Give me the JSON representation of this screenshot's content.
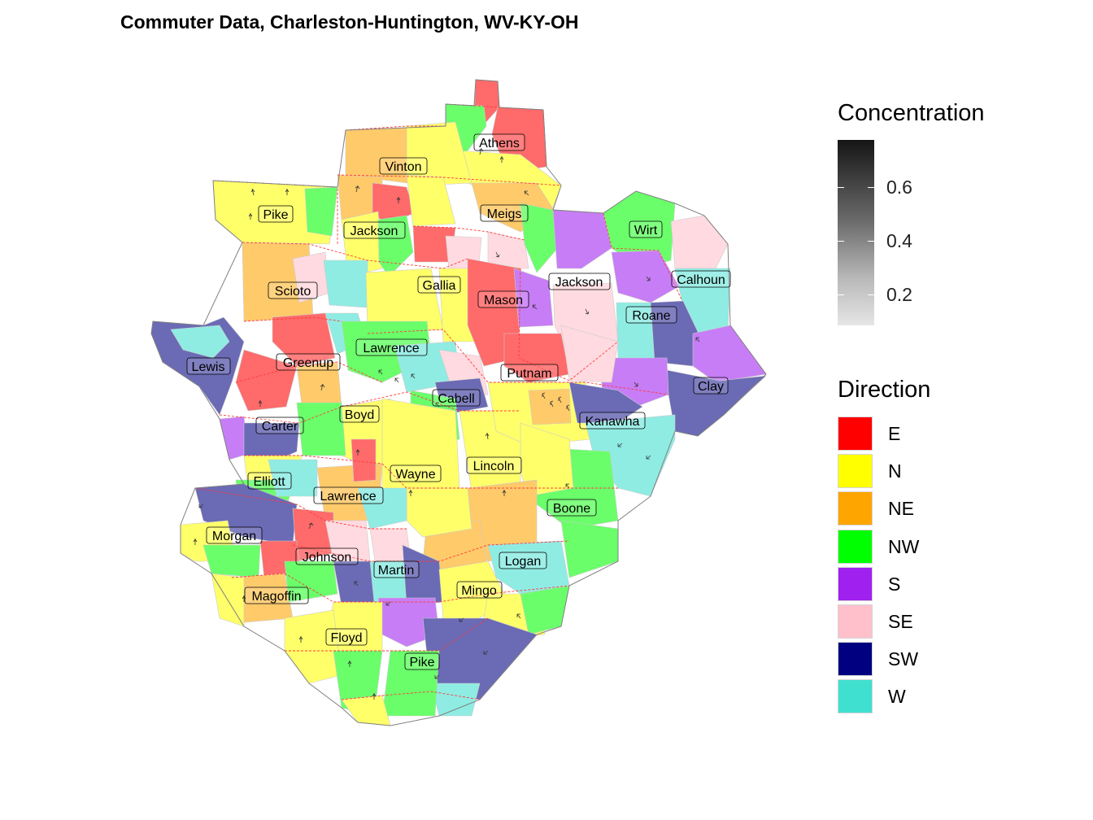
{
  "title": "Commuter Data, Charleston-Huntington, WV-KY-OH",
  "legend_concentration": {
    "title": "Concentration",
    "ticks": [
      "0.6",
      "0.4",
      "0.2"
    ]
  },
  "legend_direction": {
    "title": "Direction",
    "items": [
      {
        "label": "E",
        "color": "#FF0000"
      },
      {
        "label": "N",
        "color": "#FFFF00"
      },
      {
        "label": "NE",
        "color": "#FFA500"
      },
      {
        "label": "NW",
        "color": "#00FF00"
      },
      {
        "label": "S",
        "color": "#A020F0"
      },
      {
        "label": "SE",
        "color": "#FFC0CB"
      },
      {
        "label": "SW",
        "color": "#000080"
      },
      {
        "label": "W",
        "color": "#40E0D0"
      }
    ]
  },
  "counties": [
    "Athens",
    "Vinton",
    "Pike",
    "Jackson",
    "Meigs",
    "Wirt",
    "Gallia",
    "Jackson",
    "Calhoun",
    "Scioto",
    "Mason",
    "Roane",
    "Lawrence",
    "Lewis",
    "Greenup",
    "Putnam",
    "Clay",
    "Cabell",
    "Boyd",
    "Carter",
    "Kanawha",
    "Lincoln",
    "Wayne",
    "Elliott",
    "Lawrence",
    "Boone",
    "Morgan",
    "Johnson",
    "Logan",
    "Martin",
    "Mingo",
    "Magoffin",
    "Floyd",
    "Pike"
  ]
}
